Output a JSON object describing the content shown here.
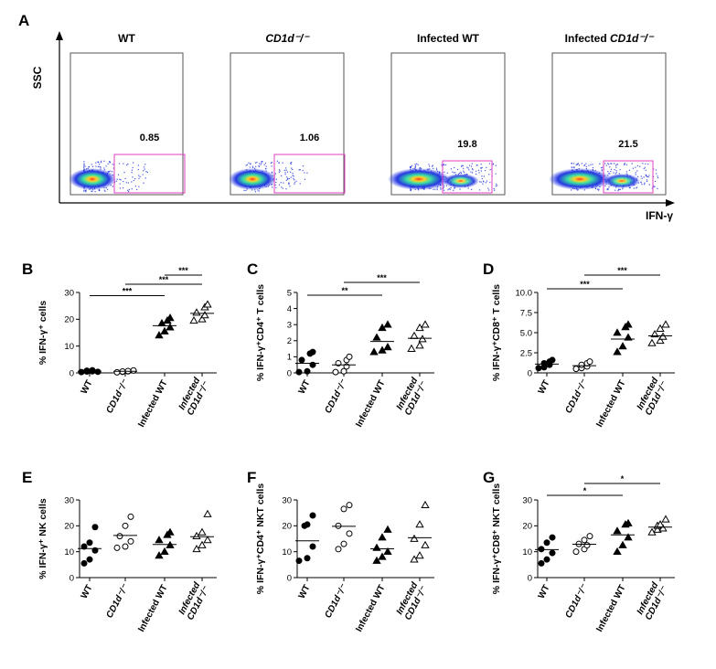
{
  "panel_a": {
    "letter": "A",
    "y_axis_label": "SSC",
    "x_axis_label": "IFN-γ",
    "plots": [
      {
        "title": "WT",
        "title_italic": "",
        "gate_percent": "0.85"
      },
      {
        "title": "",
        "title_italic": "CD1d⁻/⁻",
        "gate_percent": "1.06"
      },
      {
        "title": "Infected WT",
        "title_italic": "",
        "gate_percent": "19.8"
      },
      {
        "title": "Infected ",
        "title_italic": "CD1d⁻/⁻",
        "gate_percent": "21.5"
      }
    ],
    "colors": {
      "gate": "#e040c0",
      "density_low": "#1a2de0",
      "density_mid": "#30e0a0",
      "density_high": "#ff3010"
    }
  },
  "chart_data": [
    {
      "id": "B",
      "letter": "B",
      "type": "scatter",
      "ylabel": "% IFN-γ⁺ cells",
      "ylim": [
        0,
        30
      ],
      "yticks": [
        "0",
        "10",
        "20",
        "30"
      ],
      "categories": [
        "WT",
        "CD1d⁻/⁻",
        "Infected WT",
        "Infected CD1d⁻/⁻"
      ],
      "category_italic": [
        false,
        true,
        false,
        true
      ],
      "markers": [
        "filled-circle",
        "open-circle",
        "filled-triangle",
        "open-triangle"
      ],
      "values": [
        [
          0.3,
          0.5,
          0.6,
          0.8,
          1.0,
          0.4
        ],
        [
          0.2,
          0.4,
          0.6,
          0.5,
          0.7,
          0.9
        ],
        [
          14,
          15.5,
          17,
          18.5,
          19.5,
          20.5
        ],
        [
          19.5,
          20,
          21.5,
          22.5,
          24.5,
          25.5
        ]
      ],
      "means": [
        0.6,
        0.6,
        17.6,
        22.2
      ],
      "significance": [
        {
          "from": 0,
          "to": 2,
          "label": "***"
        },
        {
          "from": 1,
          "to": 3,
          "label": "***"
        },
        {
          "from": 2,
          "to": 3,
          "label": "***"
        }
      ]
    },
    {
      "id": "C",
      "letter": "C",
      "type": "scatter",
      "ylabel": "% IFN-γ⁺CD4⁺ T cells",
      "ylim": [
        0,
        5
      ],
      "yticks": [
        "0",
        "1",
        "2",
        "3",
        "4",
        "5"
      ],
      "categories": [
        "WT",
        "CD1d⁻/⁻",
        "Infected WT",
        "Infected CD1d⁻/⁻"
      ],
      "category_italic": [
        false,
        true,
        false,
        true
      ],
      "markers": [
        "filled-circle",
        "open-circle",
        "filled-triangle",
        "open-triangle"
      ],
      "values": [
        [
          0.05,
          0.1,
          0.5,
          0.8,
          1.2,
          1.3
        ],
        [
          0.05,
          0.1,
          0.4,
          0.6,
          0.8,
          1.0
        ],
        [
          1.3,
          1.4,
          1.6,
          2.2,
          2.8,
          3.0
        ],
        [
          1.5,
          1.7,
          2.1,
          2.3,
          2.8,
          3.0
        ]
      ],
      "means": [
        0.6,
        0.5,
        1.95,
        2.15
      ],
      "significance": [
        {
          "from": 0,
          "to": 2,
          "label": "**"
        },
        {
          "from": 1,
          "to": 3,
          "label": "***"
        }
      ]
    },
    {
      "id": "D",
      "letter": "D",
      "type": "scatter",
      "ylabel": "% IFN-γ⁺CD8⁺ T cells",
      "ylim": [
        0,
        10
      ],
      "yticks": [
        "0",
        "2.5",
        "5.0",
        "7.5",
        "10.0"
      ],
      "categories": [
        "WT",
        "CD1d⁻/⁻",
        "Infected WT",
        "Infected CD1d⁻/⁻"
      ],
      "category_italic": [
        false,
        true,
        false,
        true
      ],
      "markers": [
        "filled-circle",
        "open-circle",
        "filled-triangle",
        "open-triangle"
      ],
      "values": [
        [
          0.6,
          0.7,
          1.0,
          1.2,
          1.4,
          1.6
        ],
        [
          0.5,
          0.6,
          0.8,
          1.0,
          1.2,
          1.4
        ],
        [
          2.6,
          3.3,
          4.4,
          5.0,
          5.7,
          6.0
        ],
        [
          3.7,
          4.0,
          4.5,
          4.8,
          5.5,
          6.0
        ]
      ],
      "means": [
        1.1,
        0.9,
        4.2,
        4.6
      ],
      "significance": [
        {
          "from": 0,
          "to": 2,
          "label": "***"
        },
        {
          "from": 1,
          "to": 3,
          "label": "***"
        }
      ]
    },
    {
      "id": "E",
      "letter": "E",
      "type": "scatter",
      "ylabel": "% IFN-γ⁺ NK cells",
      "ylim": [
        0,
        30
      ],
      "yticks": [
        "0",
        "10",
        "20",
        "30"
      ],
      "categories": [
        "WT",
        "CD1d⁻/⁻",
        "Infected WT",
        "Infected CD1d⁻/⁻"
      ],
      "category_italic": [
        false,
        true,
        false,
        true
      ],
      "markers": [
        "filled-circle",
        "open-circle",
        "filled-triangle",
        "open-triangle"
      ],
      "values": [
        [
          5.5,
          7,
          10.5,
          12,
          13.5,
          19.5
        ],
        [
          11.5,
          12,
          14,
          16,
          20,
          23.5
        ],
        [
          8.5,
          10,
          12.5,
          14.5,
          16.5,
          17.5
        ],
        [
          11,
          12.5,
          14.5,
          16,
          17.5,
          24.5
        ]
      ],
      "means": [
        11.2,
        16.3,
        12.8,
        15.8
      ],
      "significance": []
    },
    {
      "id": "F",
      "letter": "F",
      "type": "scatter",
      "ylabel": "% IFN-γ⁺CD4⁺ NKT cells",
      "ylim": [
        0,
        30
      ],
      "yticks": [
        "0",
        "10",
        "20",
        "30"
      ],
      "categories": [
        "WT",
        "CD1d⁻/⁻",
        "Infected WT",
        "Infected CD1d⁻/⁻"
      ],
      "category_italic": [
        false,
        true,
        false,
        true
      ],
      "markers": [
        "filled-circle",
        "open-circle",
        "filled-triangle",
        "open-triangle"
      ],
      "values": [
        [
          6.5,
          7.5,
          12,
          20,
          20.5,
          24
        ],
        [
          11,
          13,
          17,
          20,
          26.5,
          28
        ],
        [
          6.5,
          8,
          10,
          11.5,
          15.5,
          18.5
        ],
        [
          7,
          8.5,
          12.5,
          15,
          20.5,
          28
        ]
      ],
      "means": [
        14.2,
        19.8,
        11.1,
        15.4
      ],
      "significance": []
    },
    {
      "id": "G",
      "letter": "G",
      "type": "scatter",
      "ylabel": "% IFN-γ⁺CD8⁺ NKT cells",
      "ylim": [
        0,
        30
      ],
      "yticks": [
        "0",
        "10",
        "20",
        "30"
      ],
      "categories": [
        "WT",
        "CD1d⁻/⁻",
        "Infected WT",
        "Infected CD1d⁻/⁻"
      ],
      "category_italic": [
        false,
        true,
        false,
        true
      ],
      "markers": [
        "filled-circle",
        "open-circle",
        "filled-triangle",
        "open-triangle"
      ],
      "values": [
        [
          5.5,
          7,
          9.5,
          11,
          13.5,
          15.5
        ],
        [
          10,
          11,
          12.5,
          13,
          14.5,
          16
        ],
        [
          10,
          12.5,
          15.5,
          18,
          20.5,
          21
        ],
        [
          17.5,
          18.5,
          19,
          20,
          20.5,
          22.5
        ]
      ],
      "means": [
        10.8,
        12.9,
        16.5,
        19.5
      ],
      "significance": [
        {
          "from": 0,
          "to": 2,
          "label": "*"
        },
        {
          "from": 1,
          "to": 3,
          "label": "*"
        }
      ]
    }
  ]
}
